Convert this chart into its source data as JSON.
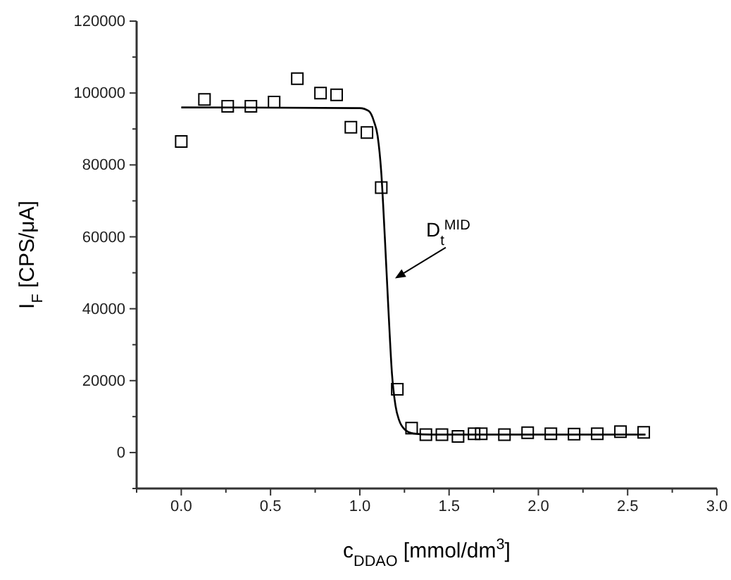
{
  "chart_data": {
    "type": "scatter",
    "xlabel": "c$_{DDAO}$ [mmol/dm$^{3}$]",
    "ylabel": "I$_{F}$ [CPS/μA]",
    "xlim": [
      -0.25,
      3.0
    ],
    "ylim": [
      -10000,
      120000
    ],
    "xticks": [
      {
        "value": -0.25,
        "label": null
      },
      {
        "value": 0,
        "label": "0.0"
      },
      {
        "value": 0.25,
        "label": null
      },
      {
        "value": 0.5,
        "label": "0.5"
      },
      {
        "value": 0.75,
        "label": null
      },
      {
        "value": 1,
        "label": "1.0"
      },
      {
        "value": 1.25,
        "label": null
      },
      {
        "value": 1.5,
        "label": "1.5"
      },
      {
        "value": 1.75,
        "label": null
      },
      {
        "value": 2,
        "label": "2.0"
      },
      {
        "value": 2.25,
        "label": null
      },
      {
        "value": 2.5,
        "label": "2.5"
      },
      {
        "value": 2.75,
        "label": null
      },
      {
        "value": 3,
        "label": "3.0"
      }
    ],
    "yticks": [
      {
        "value": -10000,
        "label": null
      },
      0,
      {
        "value": 10000,
        "label": null
      },
      20000,
      {
        "value": 30000,
        "label": null
      },
      40000,
      {
        "value": 50000,
        "label": null
      },
      60000,
      {
        "value": 70000,
        "label": null
      },
      80000,
      {
        "value": 90000,
        "label": null
      },
      100000,
      {
        "value": 110000,
        "label": null
      },
      120000
    ],
    "grid": false,
    "series": [
      {
        "marker": "square",
        "color": "#000000",
        "x": [
          0,
          0.13,
          0.26,
          0.39,
          0.52,
          0.65,
          0.78,
          0.87,
          0.95,
          1.04,
          1.12,
          1.21,
          1.29,
          1.37,
          1.46,
          1.55,
          1.64,
          1.68,
          1.81,
          1.94,
          2.07,
          2.2,
          2.33,
          2.46,
          2.59
        ],
        "values": [
          86500,
          98200,
          96300,
          96300,
          97500,
          104000,
          100000,
          99500,
          90500,
          89000,
          73700,
          17600,
          6800,
          5000,
          5000,
          4500,
          5200,
          5200,
          5000,
          5500,
          5200,
          5100,
          5200,
          5800,
          5600
        ]
      },
      {
        "type": "line",
        "line_style": "solid",
        "color": "#000000",
        "x": [
          0,
          1.0,
          1.05,
          1.08,
          1.1,
          1.12,
          1.14,
          1.16,
          1.18,
          1.2,
          1.22,
          1.25,
          1.3,
          1.4,
          2.6
        ],
        "values": [
          96000,
          95800,
          95000,
          92000,
          88000,
          78000,
          60000,
          40000,
          22000,
          13000,
          9000,
          6500,
          5300,
          5000,
          5000
        ]
      }
    ],
    "annotations": [
      {
        "text": "D$_{t}$$^{MID}$",
        "x": 1.15,
        "y": 50000
      }
    ]
  }
}
